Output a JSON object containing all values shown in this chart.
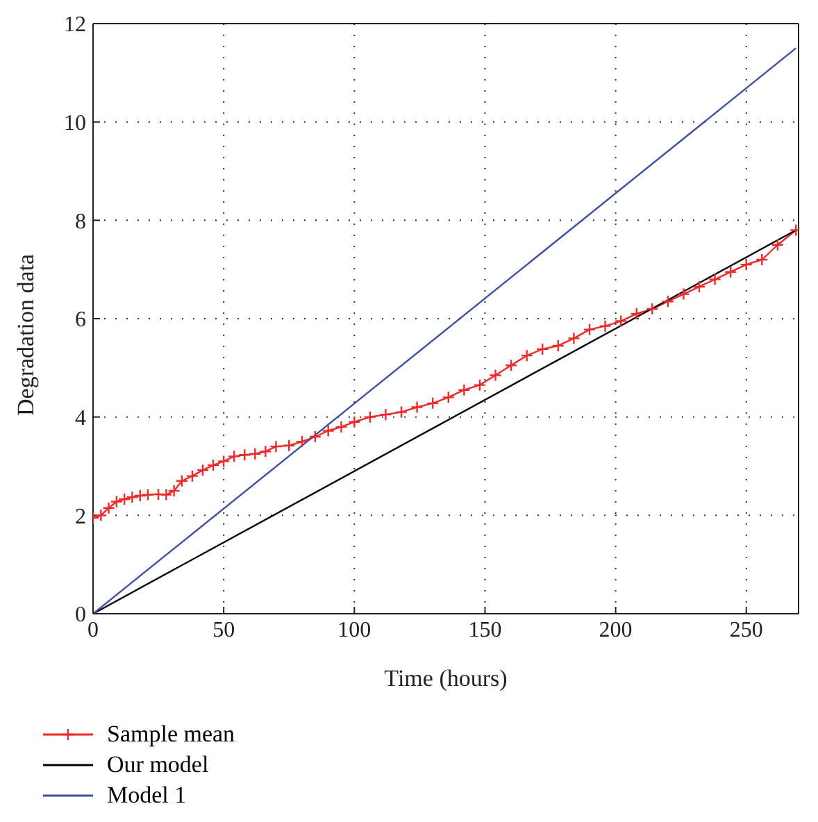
{
  "chart_data": {
    "type": "line",
    "xlabel": "Time (hours)",
    "ylabel": "Degradation data",
    "xlim": [
      0,
      270
    ],
    "xticks": [
      0,
      50,
      100,
      150,
      200,
      250
    ],
    "ylim": [
      0,
      12
    ],
    "yticks": [
      0,
      2,
      4,
      6,
      8,
      10,
      12
    ],
    "grid": true,
    "legend": "bottom",
    "line_style": "solid",
    "series": [
      {
        "name": "Sample mean",
        "color": "#ee2a2a",
        "marker": "cross",
        "x": [
          0,
          3,
          6,
          9,
          12,
          15,
          18,
          21,
          25,
          28,
          31,
          34,
          38,
          42,
          46,
          50,
          54,
          58,
          62,
          66,
          70,
          75,
          80,
          85,
          90,
          95,
          100,
          106,
          112,
          118,
          124,
          130,
          136,
          142,
          148,
          154,
          160,
          166,
          172,
          178,
          184,
          190,
          196,
          202,
          208,
          214,
          220,
          226,
          232,
          238,
          244,
          250,
          256,
          262,
          269
        ],
        "values": [
          1.95,
          2.0,
          2.15,
          2.28,
          2.33,
          2.37,
          2.4,
          2.42,
          2.43,
          2.42,
          2.5,
          2.7,
          2.8,
          2.92,
          3.02,
          3.1,
          3.2,
          3.23,
          3.25,
          3.3,
          3.4,
          3.42,
          3.5,
          3.6,
          3.72,
          3.8,
          3.9,
          4.0,
          4.05,
          4.1,
          4.2,
          4.28,
          4.4,
          4.55,
          4.65,
          4.85,
          5.05,
          5.25,
          5.38,
          5.45,
          5.6,
          5.78,
          5.85,
          5.95,
          6.1,
          6.2,
          6.35,
          6.5,
          6.65,
          6.8,
          6.95,
          7.1,
          7.2,
          7.5,
          7.8
        ]
      },
      {
        "name": "Our model",
        "color": "#000000",
        "marker": "none",
        "x": [
          0,
          269
        ],
        "values": [
          0,
          7.8
        ]
      },
      {
        "name": "Model 1",
        "color": "#3a4fa8",
        "marker": "none",
        "x": [
          0,
          269
        ],
        "values": [
          0,
          11.5
        ]
      }
    ]
  }
}
